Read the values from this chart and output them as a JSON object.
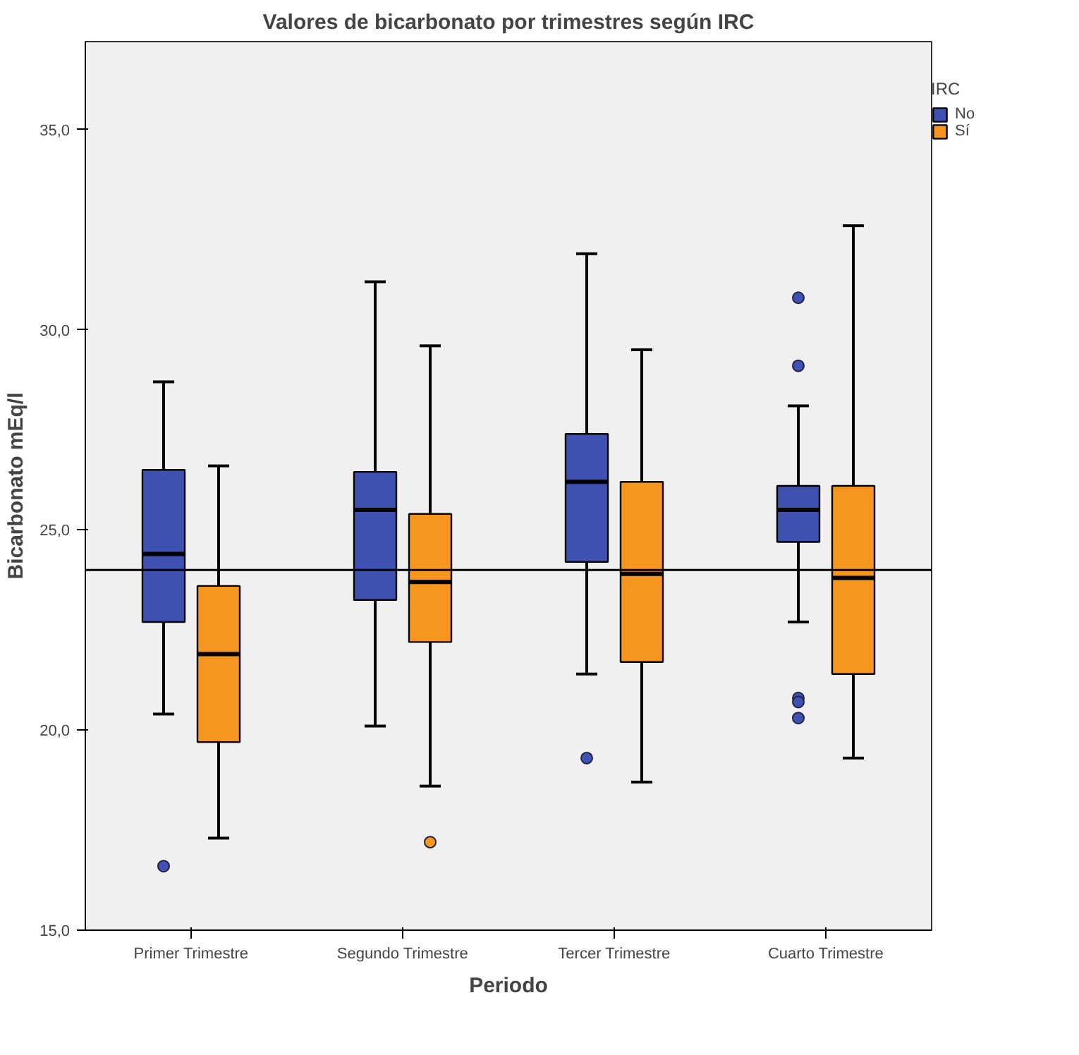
{
  "chart_data": {
    "type": "box",
    "title": "Valores de bicarbonato por trimestres según IRC",
    "xlabel": "Periodo",
    "ylabel": "Bicarbonato mEq/l",
    "legend_title": "IRC",
    "legend": "top right",
    "categories": [
      "Primer Trimestre",
      "Segundo Trimestre",
      "Tercer Trimestre",
      "Cuarto Trimestre"
    ],
    "ylim": [
      15,
      37.2
    ],
    "yticks": [
      {
        "value": 15,
        "label": "15,0"
      },
      {
        "value": 20,
        "label": "20,0"
      },
      {
        "value": 25,
        "label": "25,0"
      },
      {
        "value": 30,
        "label": "30,0"
      },
      {
        "value": 35,
        "label": "35,0"
      }
    ],
    "grid": false,
    "ref_lines": [
      {
        "axis": "y",
        "value": 24.0,
        "label": null,
        "color": "#000000"
      }
    ],
    "series": [
      {
        "name": "No",
        "color": "#3f51b1",
        "boxes": [
          {
            "low": 20.4,
            "q1": 22.7,
            "median": 24.4,
            "q3": 26.5,
            "high": 28.7,
            "outliers": [
              16.6
            ]
          },
          {
            "low": 20.1,
            "q1": 23.25,
            "median": 25.5,
            "q3": 26.45,
            "high": 31.2
          },
          {
            "low": 21.4,
            "q1": 24.2,
            "median": 26.2,
            "q3": 27.4,
            "high": 31.9,
            "outliers": [
              19.3
            ]
          },
          {
            "low": 22.7,
            "q1": 24.7,
            "median": 25.5,
            "q3": 26.1,
            "high": 28.1,
            "outliers": [
              29.1,
              30.8,
              20.8,
              20.7,
              20.3
            ]
          }
        ]
      },
      {
        "name": "Sí",
        "color": "#f7961e",
        "boxes": [
          {
            "low": 17.3,
            "q1": 19.7,
            "median": 21.9,
            "q3": 23.6,
            "high": 26.6
          },
          {
            "low": 18.6,
            "q1": 22.2,
            "median": 23.7,
            "q3": 25.4,
            "high": 29.6,
            "outliers": [
              17.2
            ]
          },
          {
            "low": 18.7,
            "q1": 21.7,
            "median": 23.9,
            "q3": 26.2,
            "high": 29.5
          },
          {
            "low": 19.3,
            "q1": 21.4,
            "median": 23.8,
            "q3": 26.1,
            "high": 32.6
          }
        ]
      }
    ]
  }
}
